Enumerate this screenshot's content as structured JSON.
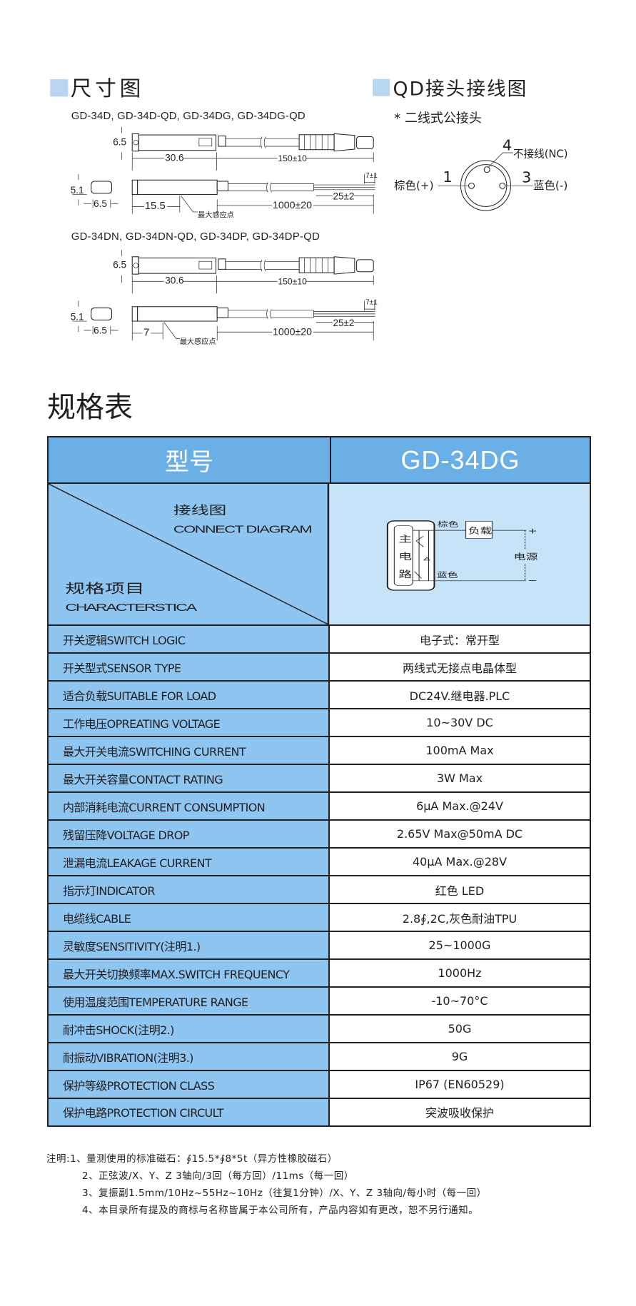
{
  "dimensions": {
    "title": "尺寸图",
    "group1_models": "GD-34D, GD-34D-QD, GD-34DG, GD-34DG-QD",
    "group2_models": "GD-34DN, GD-34DN-QD, GD-34DP, GD-34DP-QD",
    "height": "6.5",
    "body_length": "30.6",
    "qd_cable_length": "150±10",
    "cross_height": "5.1",
    "cross_width": "6.5",
    "strip_length": "7±1",
    "lead_length": "25±2",
    "cable_length": "1000±20",
    "sense_point_1": "15.5",
    "sense_point_2": "7",
    "sense_point_label": "最大感应点"
  },
  "qd": {
    "title": "QD接头接线图",
    "subtitle": "* 二线式公接头",
    "pin1_num": "1",
    "pin1_label": "棕色(+)",
    "pin3_num": "3",
    "pin3_label": "蓝色(-)",
    "pin4_num": "4",
    "pin4_label": "不接线(NC)"
  },
  "spec": {
    "title": "规格表",
    "header_label": "型号",
    "model": "GD-34DG",
    "diagram_cn": "接线图",
    "diagram_en": "CONNECT DIAGRAM",
    "items_cn": "规格项目",
    "items_en": "CHARACTERSTICA",
    "circuit": {
      "main": [
        "主",
        "电",
        "路"
      ],
      "brown": "棕色",
      "blue": "蓝色",
      "load": "负载",
      "power": "电源",
      "plus": "+",
      "minus": "−"
    },
    "rows": [
      {
        "label": "开关逻辑SWITCH LOGIC",
        "value": "电子式：常开型"
      },
      {
        "label": "开关型式SENSOR TYPE",
        "value": "两线式无接点电晶体型"
      },
      {
        "label": "适合负载SUITABLE FOR LOAD",
        "value": "DC24V.继电器.PLC"
      },
      {
        "label": "工作电压OPREATING VOLTAGE",
        "value": "10~30V DC"
      },
      {
        "label": "最大开关电流SWITCHING CURRENT",
        "value": "100mA Max"
      },
      {
        "label": "最大开关容量CONTACT RATING",
        "value": "3W Max"
      },
      {
        "label": "内部消耗电流CURRENT CONSUMPTION",
        "value": "6μA Max.@24V"
      },
      {
        "label": "残留压降VOLTAGE DROP",
        "value": "2.65V Max@50mA DC"
      },
      {
        "label": "泄漏电流LEAKAGE CURRENT",
        "value": "40μA Max.@28V"
      },
      {
        "label": "指示灯INDICATOR",
        "value": "红色  LED"
      },
      {
        "label": "电缆线CABLE",
        "value": "2.8∮,2C,灰色耐油TPU"
      },
      {
        "label": "灵敏度SENSITIVITY(注明1.)",
        "value": "25~1000G"
      },
      {
        "label": "最大开关切换频率MAX.SWITCH FREQUENCY",
        "value": "1000Hz"
      },
      {
        "label": "使用温度范围TEMPERATURE RANGE",
        "value": "-10~70°C"
      },
      {
        "label": "耐冲击SHOCK(注明2.)",
        "value": "50G"
      },
      {
        "label": "耐振动VIBRATION(注明3.)",
        "value": "9G"
      },
      {
        "label": "保护等级PROTECTION CLASS",
        "value": "IP67 (EN60529)"
      },
      {
        "label": "保护电路PROTECTION CIRCULT",
        "value": "突波吸收保护"
      }
    ]
  },
  "notes": [
    "注明:1、量测使用的标准磁石：∮15.5*∮8*5t（异方性橡胶磁石）",
    "2、正弦波/X、Y、Z 3轴向/3回（每方回）/11ms（每一回）",
    "3、复振副1.5mm/10Hz~55Hz~10Hz（往复1分钟）/X、Y、Z 3轴向/每小时（每一回）",
    "4、本目录所有提及的商标与名称皆属于本公司所有，产品内容如有更改，恕不另行通知。"
  ],
  "colors": {
    "header": "#6aafe6",
    "label_cell": "#8ec5f1",
    "diagram_cell": "#c6e3f8",
    "title_square": "#b8d6ef"
  }
}
